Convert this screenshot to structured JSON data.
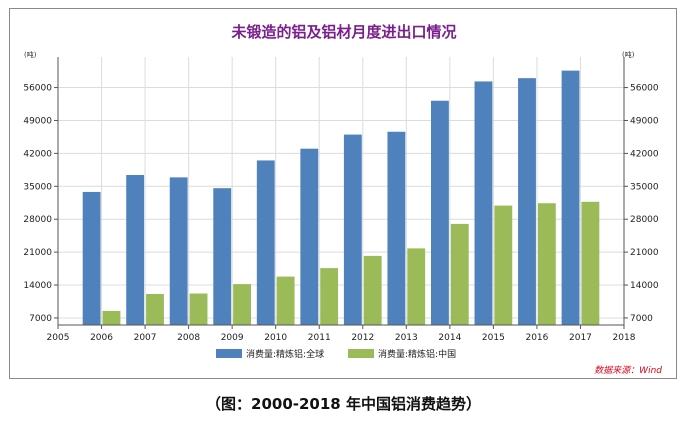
{
  "chart_data": {
    "type": "bar",
    "title": "未锻造的铝及铝材月度进出口情况",
    "y_unit_left": "(吨)",
    "y_unit_right": "(吨)",
    "x_ticks": [
      "2005",
      "2006",
      "2007",
      "2008",
      "2009",
      "2010",
      "2011",
      "2012",
      "2013",
      "2014",
      "2015",
      "2016",
      "2017",
      "2018"
    ],
    "xlim": [
      2005,
      2018
    ],
    "y_ticks": [
      7000,
      14000,
      21000,
      28000,
      35000,
      42000,
      49000,
      56000
    ],
    "ylim": [
      5500,
      62500
    ],
    "categories": [
      "2006",
      "2007",
      "2008",
      "2009",
      "2010",
      "2011",
      "2012",
      "2013",
      "2014",
      "2015",
      "2016",
      "2017"
    ],
    "series": [
      {
        "name": "消费量:精炼铝:全球",
        "color": "#4f81bd",
        "values": [
          33800,
          37400,
          36900,
          34600,
          40500,
          43000,
          46000,
          46600,
          53200,
          57300,
          58000,
          59600
        ]
      },
      {
        "name": "消费量:精炼铝:中国",
        "color": "#9bbb59",
        "values": [
          8500,
          12100,
          12200,
          14200,
          15800,
          17600,
          20200,
          21800,
          27000,
          30900,
          31400,
          31700
        ]
      }
    ],
    "grid": true,
    "legend_position": "bottom",
    "source_note": "数据来源：Wind",
    "title_color": "#7a1f8c",
    "source_note_color": "#e0001b"
  },
  "caption": "（图：2000-2018 年中国铝消费趋势）"
}
